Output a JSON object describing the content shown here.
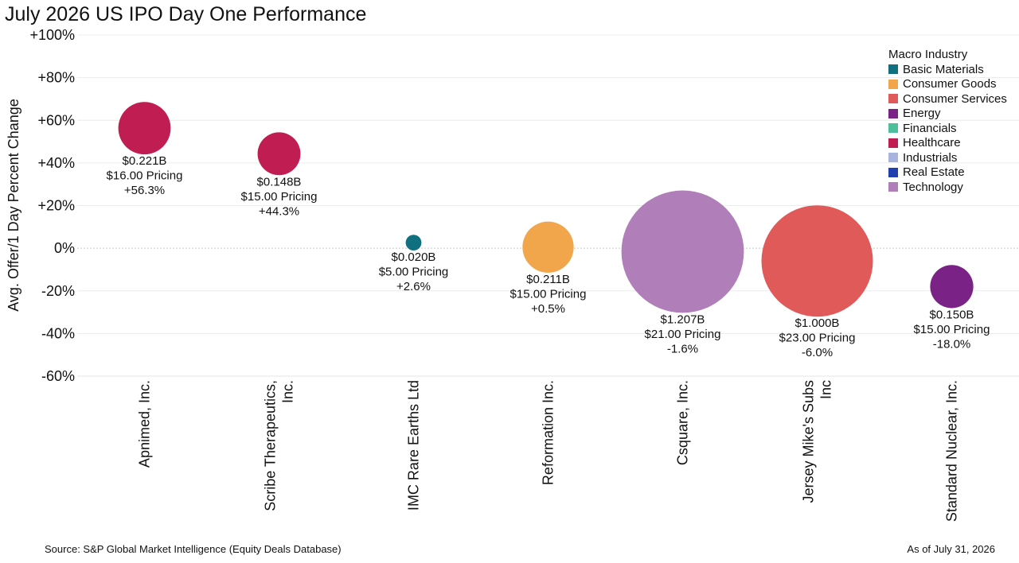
{
  "title": "July 2026 US IPO Day One Performance",
  "footer": {
    "source": "Source: S&P Global Market Intelligence (Equity Deals Database)",
    "as_of": "As of July 31, 2026"
  },
  "legend": {
    "title": "Macro Industry",
    "items": [
      {
        "name": "Basic Materials",
        "color": "#11707f"
      },
      {
        "name": "Consumer Goods",
        "color": "#f2a64b"
      },
      {
        "name": "Consumer Services",
        "color": "#e05a5a"
      },
      {
        "name": "Energy",
        "color": "#7b2287"
      },
      {
        "name": "Financials",
        "color": "#4dbf9b"
      },
      {
        "name": "Healthcare",
        "color": "#c01d52"
      },
      {
        "name": "Industrials",
        "color": "#a8b4dd"
      },
      {
        "name": "Real Estate",
        "color": "#2040b0"
      },
      {
        "name": "Technology",
        "color": "#b07fb9"
      }
    ]
  },
  "chart_data": {
    "type": "scatter",
    "title": "July 2026 US IPO Day One Performance",
    "ylabel": "Avg. Offer/1 Day Percent Change",
    "ylim": [
      -60,
      100
    ],
    "yticks": [
      "+100%",
      "+80%",
      "+60%",
      "+40%",
      "+20%",
      "0%",
      "-20%",
      "-40%",
      "-60%"
    ],
    "ytick_values": [
      100,
      80,
      60,
      40,
      20,
      0,
      -20,
      -40,
      -60
    ],
    "grid": true,
    "legend_position": "top-right",
    "size_encodes": "deal size ($B)",
    "points": [
      {
        "company": [
          "Apnimed, Inc."
        ],
        "industry": "Healthcare",
        "size_b": 0.221,
        "y": 56.3,
        "labels": [
          "$0.221B",
          "$16.00 Pricing",
          "+56.3%"
        ]
      },
      {
        "company": [
          "Scribe Therapeutics,",
          "Inc."
        ],
        "industry": "Healthcare",
        "size_b": 0.148,
        "y": 44.3,
        "labels": [
          "$0.148B",
          "$15.00 Pricing",
          "+44.3%"
        ]
      },
      {
        "company": [
          "IMC Rare Earths Ltd"
        ],
        "industry": "Basic Materials",
        "size_b": 0.02,
        "y": 2.6,
        "labels": [
          "$0.020B",
          "$5.00 Pricing",
          "+2.6%"
        ]
      },
      {
        "company": [
          "Reformation Inc."
        ],
        "industry": "Consumer Goods",
        "size_b": 0.211,
        "y": 0.5,
        "labels": [
          "$0.211B",
          "$15.00 Pricing",
          "+0.5%"
        ]
      },
      {
        "company": [
          "Csquare, Inc."
        ],
        "industry": "Technology",
        "size_b": 1.207,
        "y": -1.6,
        "labels": [
          "$1.207B",
          "$21.00 Pricing",
          "-1.6%"
        ]
      },
      {
        "company": [
          "Jersey Mike's Subs",
          "Inc"
        ],
        "industry": "Consumer Services",
        "size_b": 1.0,
        "y": -6.0,
        "labels": [
          "$1.000B",
          "$23.00 Pricing",
          "-6.0%"
        ]
      },
      {
        "company": [
          "Standard Nuclear, Inc."
        ],
        "industry": "Energy",
        "size_b": 0.15,
        "y": -18.0,
        "labels": [
          "$0.150B",
          "$15.00 Pricing",
          "-18.0%"
        ]
      }
    ]
  }
}
